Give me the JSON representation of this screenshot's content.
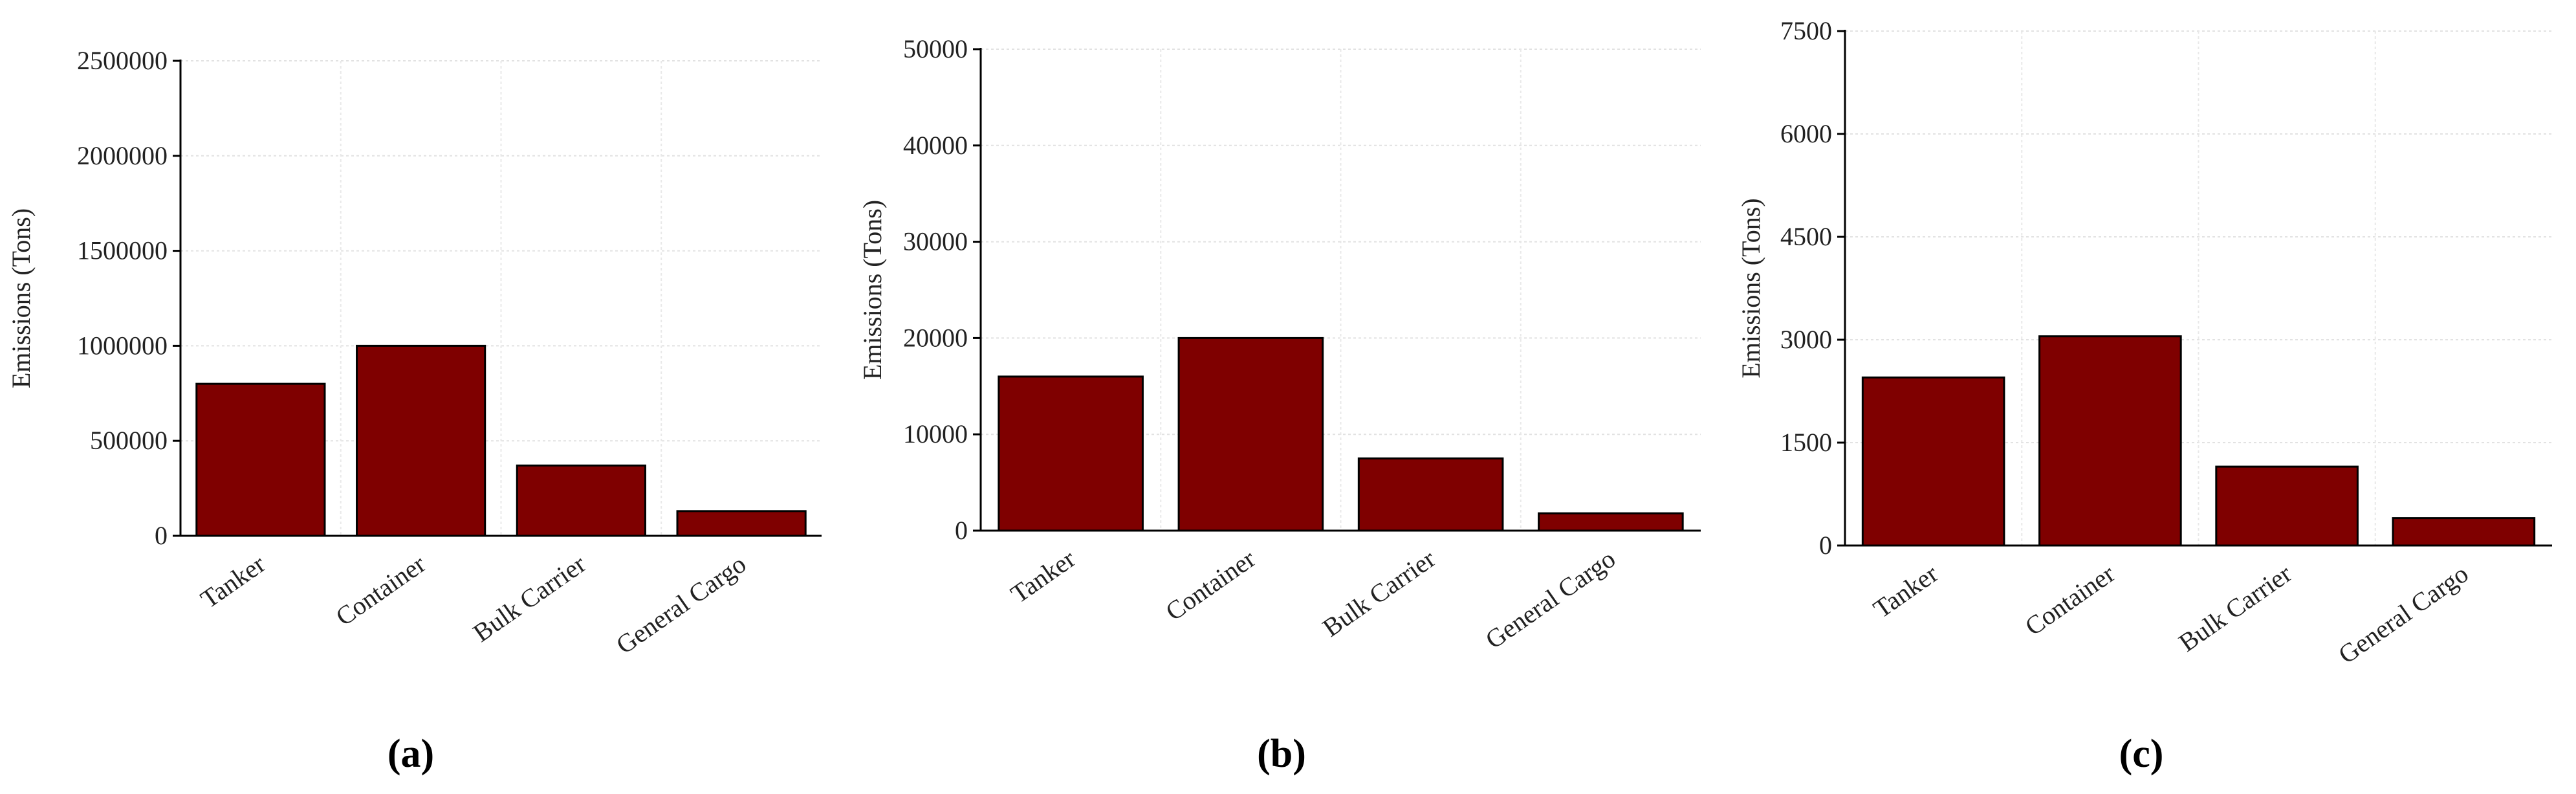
{
  "chart_data": [
    {
      "type": "bar",
      "caption": "(a)",
      "y_label": "Emissions (Tons)",
      "categories": [
        "Tanker",
        "Container",
        "Bulk Carrier",
        "General Cargo"
      ],
      "values": [
        800000,
        1000000,
        370000,
        130000
      ],
      "color": "#7f0000",
      "ylim": [
        0,
        2500000
      ],
      "yticks": [
        0,
        500000,
        1000000,
        1500000,
        2000000,
        2500000
      ],
      "grid": true
    },
    {
      "type": "bar",
      "caption": "(b)",
      "y_label": "Emissions (Tons)",
      "categories": [
        "Tanker",
        "Container",
        "Bulk Carrier",
        "General Cargo"
      ],
      "values": [
        16000,
        20000,
        7500,
        1800
      ],
      "color": "#7f0000",
      "ylim": [
        0,
        50000
      ],
      "yticks": [
        0,
        10000,
        20000,
        30000,
        40000,
        50000
      ],
      "grid": true
    },
    {
      "type": "bar",
      "caption": "(c)",
      "y_label": "Emissions (Tons)",
      "categories": [
        "Tanker",
        "Container",
        "Bulk Carrier",
        "General Cargo"
      ],
      "values": [
        2450,
        3050,
        1150,
        400
      ],
      "color": "#7f0000",
      "ylim": [
        0,
        7500
      ],
      "yticks": [
        0,
        1500,
        3000,
        4500,
        6000,
        7500
      ],
      "grid": true
    }
  ]
}
